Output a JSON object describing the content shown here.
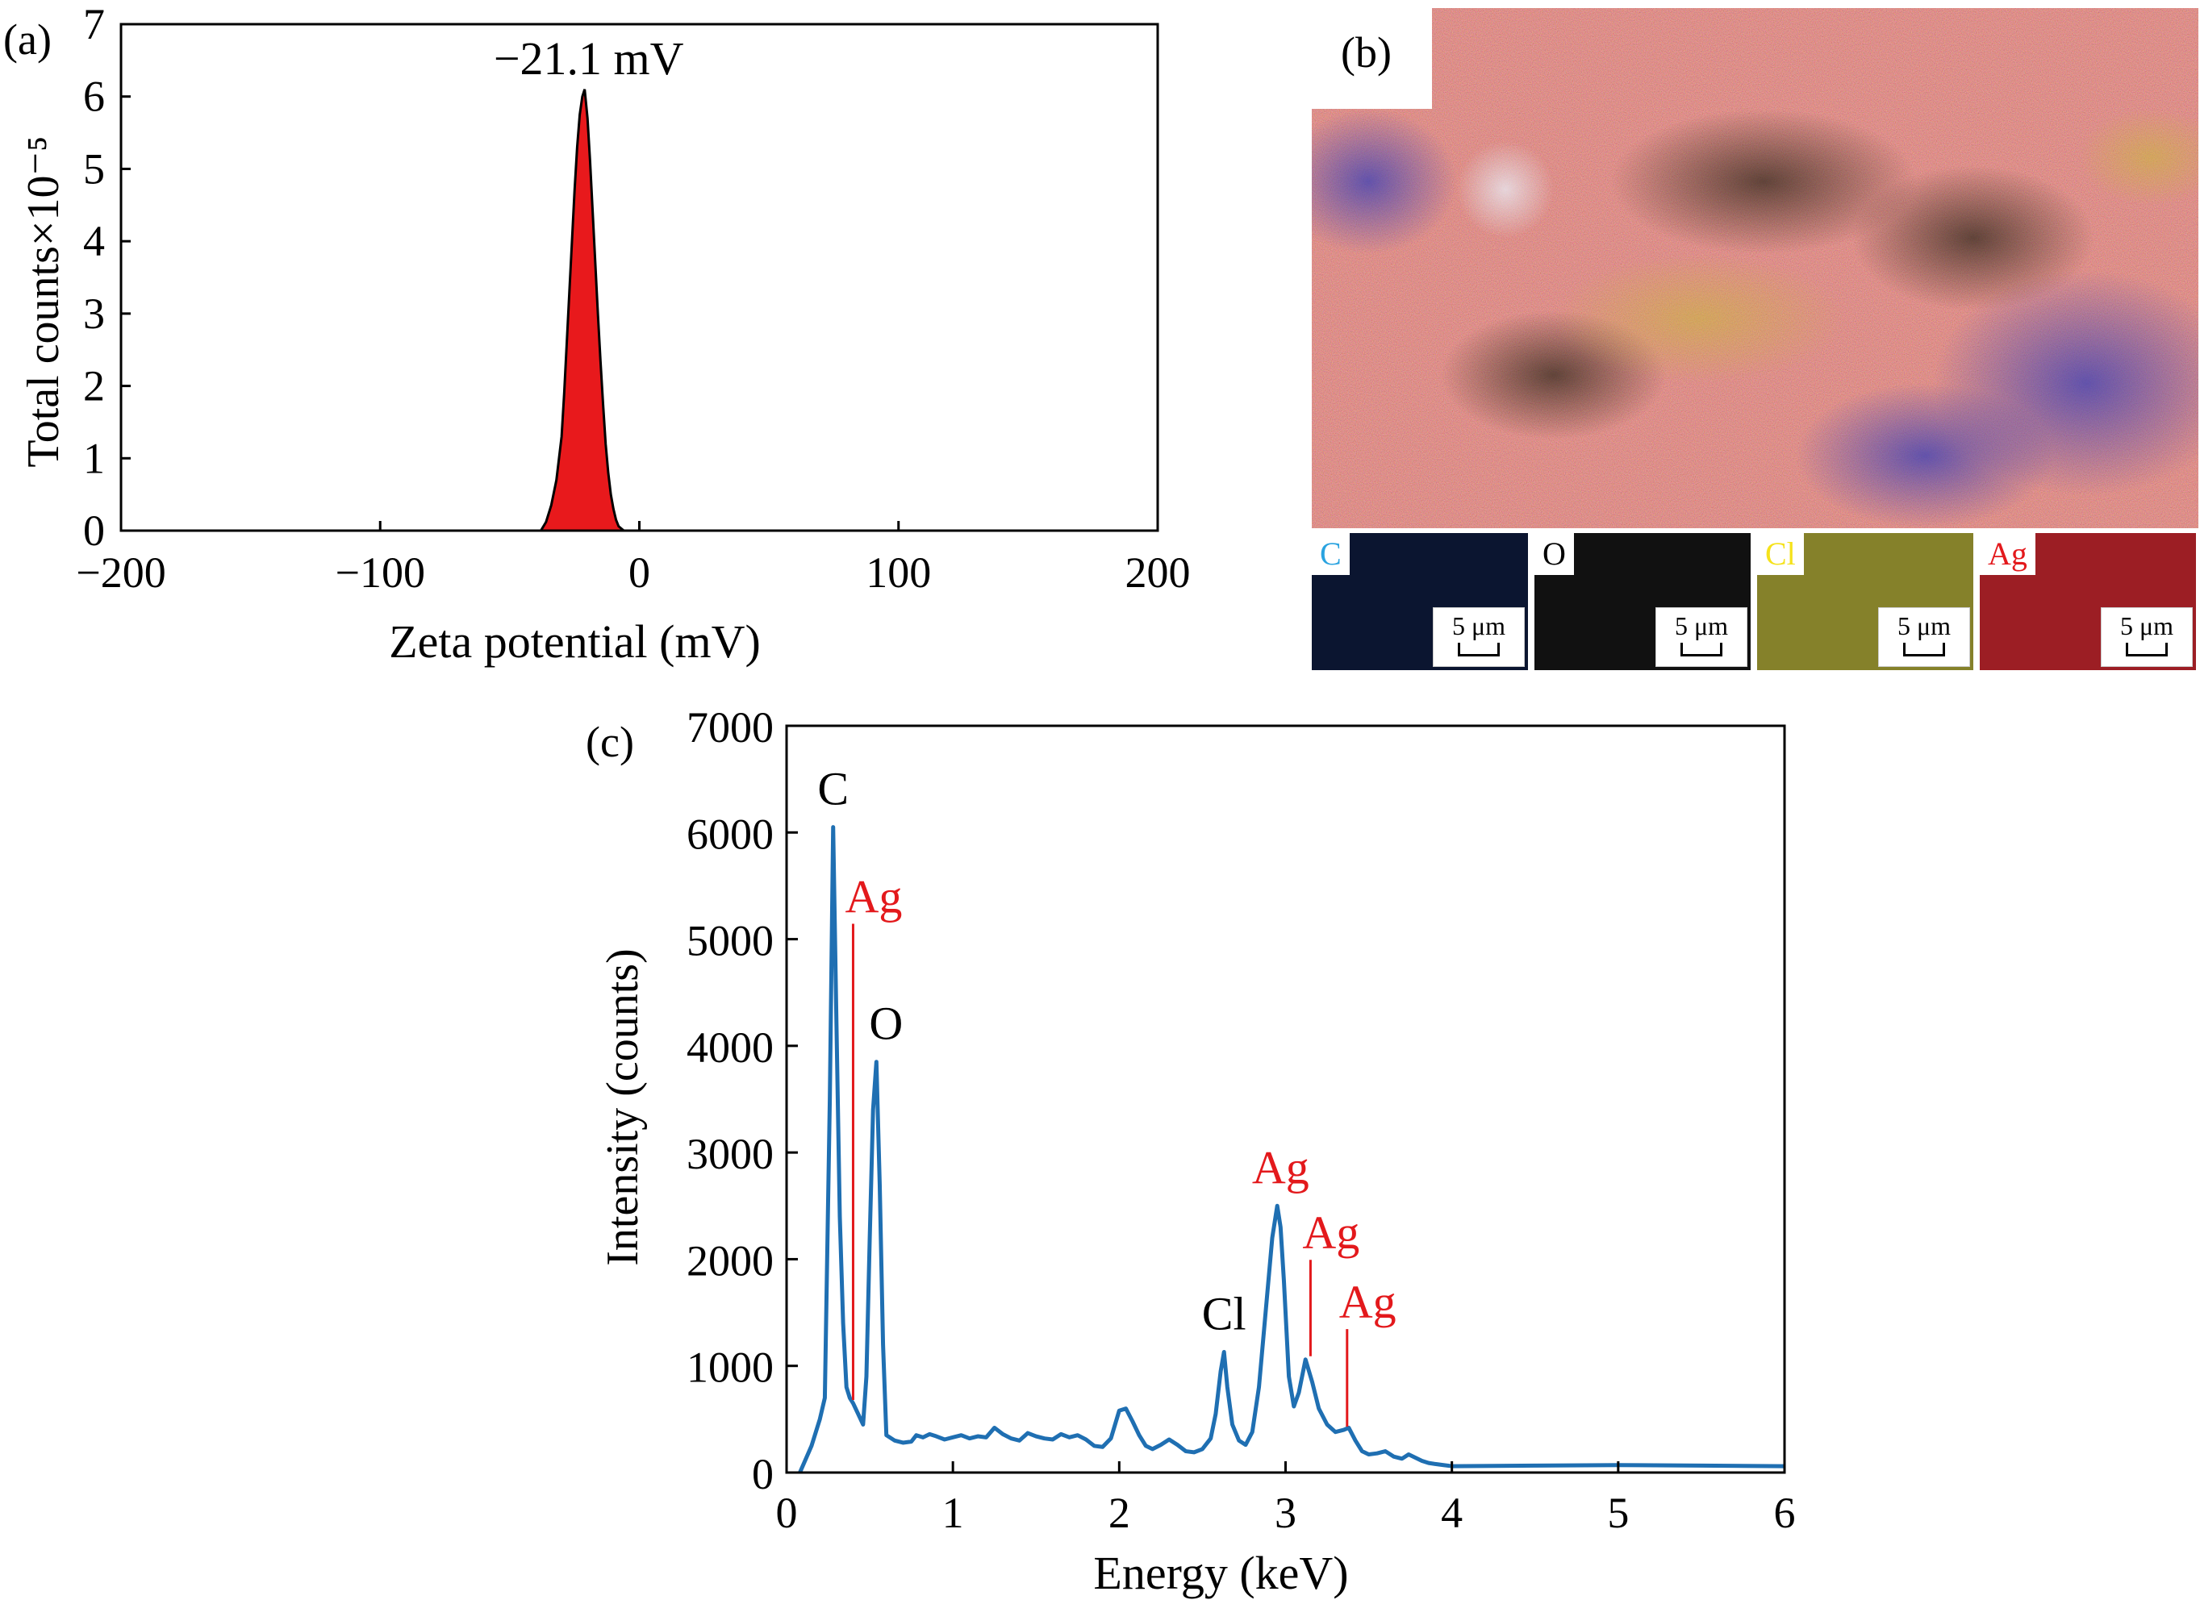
{
  "panels": {
    "a": "(a)",
    "b": "(b)",
    "c": "(c)"
  },
  "chart_data": [
    {
      "type": "area",
      "panel": "(a)",
      "xlabel": "Zeta potential (mV)",
      "ylabel": "Total counts×10⁻⁵",
      "xlim": [
        -200,
        200
      ],
      "ylim": [
        0,
        7
      ],
      "xticks": [
        -200,
        -100,
        0,
        100,
        200
      ],
      "yticks": [
        0,
        1,
        2,
        3,
        4,
        5,
        6,
        7
      ],
      "xtick_labels": [
        "−200",
        "−100",
        "0",
        "100",
        "200"
      ],
      "ytick_labels": [
        "0",
        "1",
        "2",
        "3",
        "4",
        "5",
        "6",
        "7"
      ],
      "annotation": "−21.1 mV",
      "peak": {
        "x": -21.1,
        "y": 6.1
      },
      "x": [
        -38,
        -36,
        -34,
        -32,
        -31,
        -30,
        -29,
        -28,
        -27,
        -26,
        -25,
        -24,
        -23,
        -22,
        -21.1,
        -20,
        -19,
        -18,
        -17,
        -16,
        -15,
        -14,
        -13,
        -12,
        -11,
        -10,
        -9,
        -8,
        -6
      ],
      "y": [
        0,
        0.12,
        0.35,
        0.7,
        1.0,
        1.3,
        1.9,
        2.6,
        3.3,
        4.0,
        4.7,
        5.3,
        5.75,
        6.0,
        6.1,
        5.7,
        5.1,
        4.4,
        3.7,
        3.0,
        2.35,
        1.75,
        1.2,
        0.8,
        0.5,
        0.3,
        0.15,
        0.06,
        0
      ],
      "fill_color": "#e8191c",
      "grid": false
    },
    {
      "type": "line",
      "panel": "(c)",
      "xlabel": "Energy (keV)",
      "ylabel": "Intensity (counts)",
      "xlim": [
        0,
        6
      ],
      "ylim": [
        0,
        7000
      ],
      "xticks": [
        0,
        1,
        2,
        3,
        4,
        5,
        6
      ],
      "yticks": [
        0,
        1000,
        2000,
        3000,
        4000,
        5000,
        6000,
        7000
      ],
      "line_color": "#1f6fb2",
      "grid": false,
      "x": [
        0.08,
        0.15,
        0.2,
        0.23,
        0.26,
        0.28,
        0.3,
        0.32,
        0.34,
        0.36,
        0.38,
        0.4,
        0.43,
        0.46,
        0.48,
        0.5,
        0.52,
        0.54,
        0.56,
        0.58,
        0.6,
        0.65,
        0.7,
        0.75,
        0.78,
        0.82,
        0.86,
        0.9,
        0.95,
        1.0,
        1.05,
        1.1,
        1.15,
        1.2,
        1.25,
        1.3,
        1.35,
        1.4,
        1.45,
        1.5,
        1.55,
        1.6,
        1.65,
        1.7,
        1.75,
        1.8,
        1.85,
        1.9,
        1.95,
        2.0,
        2.04,
        2.08,
        2.12,
        2.16,
        2.2,
        2.25,
        2.3,
        2.35,
        2.4,
        2.45,
        2.5,
        2.55,
        2.58,
        2.61,
        2.63,
        2.65,
        2.68,
        2.72,
        2.76,
        2.8,
        2.84,
        2.88,
        2.92,
        2.95,
        2.97,
        2.99,
        3.02,
        3.05,
        3.08,
        3.12,
        3.16,
        3.2,
        3.25,
        3.3,
        3.35,
        3.38,
        3.42,
        3.46,
        3.5,
        3.55,
        3.6,
        3.65,
        3.7,
        3.74,
        3.78,
        3.82,
        3.86,
        3.9,
        3.95,
        4.0,
        4.5,
        5.0,
        5.5,
        6.0
      ],
      "y": [
        0,
        250,
        500,
        700,
        3500,
        6050,
        4200,
        2400,
        1400,
        800,
        700,
        650,
        550,
        450,
        900,
        2200,
        3400,
        3850,
        2700,
        1200,
        350,
        300,
        280,
        290,
        350,
        330,
        360,
        340,
        310,
        330,
        350,
        320,
        340,
        330,
        420,
        360,
        320,
        300,
        370,
        340,
        320,
        310,
        360,
        330,
        350,
        310,
        250,
        240,
        320,
        580,
        600,
        480,
        350,
        250,
        220,
        260,
        310,
        260,
        200,
        190,
        220,
        320,
        550,
        950,
        1130,
        800,
        450,
        300,
        260,
        380,
        800,
        1500,
        2200,
        2500,
        2300,
        1800,
        900,
        620,
        750,
        1060,
        850,
        600,
        450,
        380,
        400,
        420,
        300,
        200,
        170,
        180,
        200,
        150,
        130,
        170,
        140,
        110,
        90,
        80,
        70,
        60,
        65,
        70,
        65,
        60
      ],
      "peak_labels": [
        {
          "text": "C",
          "x": 0.28,
          "y": 6050,
          "color": "#000000"
        },
        {
          "text": "Ag",
          "x": 0.4,
          "y": 650,
          "color": "#e3191c",
          "label_y": 5250
        },
        {
          "text": "O",
          "x": 0.54,
          "y": 3850,
          "color": "#000000"
        },
        {
          "text": "Cl",
          "x": 2.63,
          "y": 1130,
          "color": "#000000"
        },
        {
          "text": "Ag",
          "x": 2.97,
          "y": 2500,
          "color": "#e3191c"
        },
        {
          "text": "Ag",
          "x": 3.15,
          "y": 1060,
          "color": "#e3191c",
          "label_y": 2100
        },
        {
          "text": "Ag",
          "x": 3.37,
          "y": 400,
          "color": "#e3191c",
          "label_y": 1450
        }
      ]
    }
  ],
  "eds_maps": {
    "tiles": [
      {
        "element": "C",
        "color": "#2aa3e0",
        "bg": "#0b1530",
        "scale": "5 μm"
      },
      {
        "element": "O",
        "color": "#000000",
        "bg": "#111111",
        "scale": "5 μm"
      },
      {
        "element": "Cl",
        "color": "#f5e21b",
        "bg": "#85812a",
        "scale": "5 μm"
      },
      {
        "element": "Ag",
        "color": "#e3191c",
        "bg": "#9c1e24",
        "scale": "5 μm"
      }
    ]
  }
}
